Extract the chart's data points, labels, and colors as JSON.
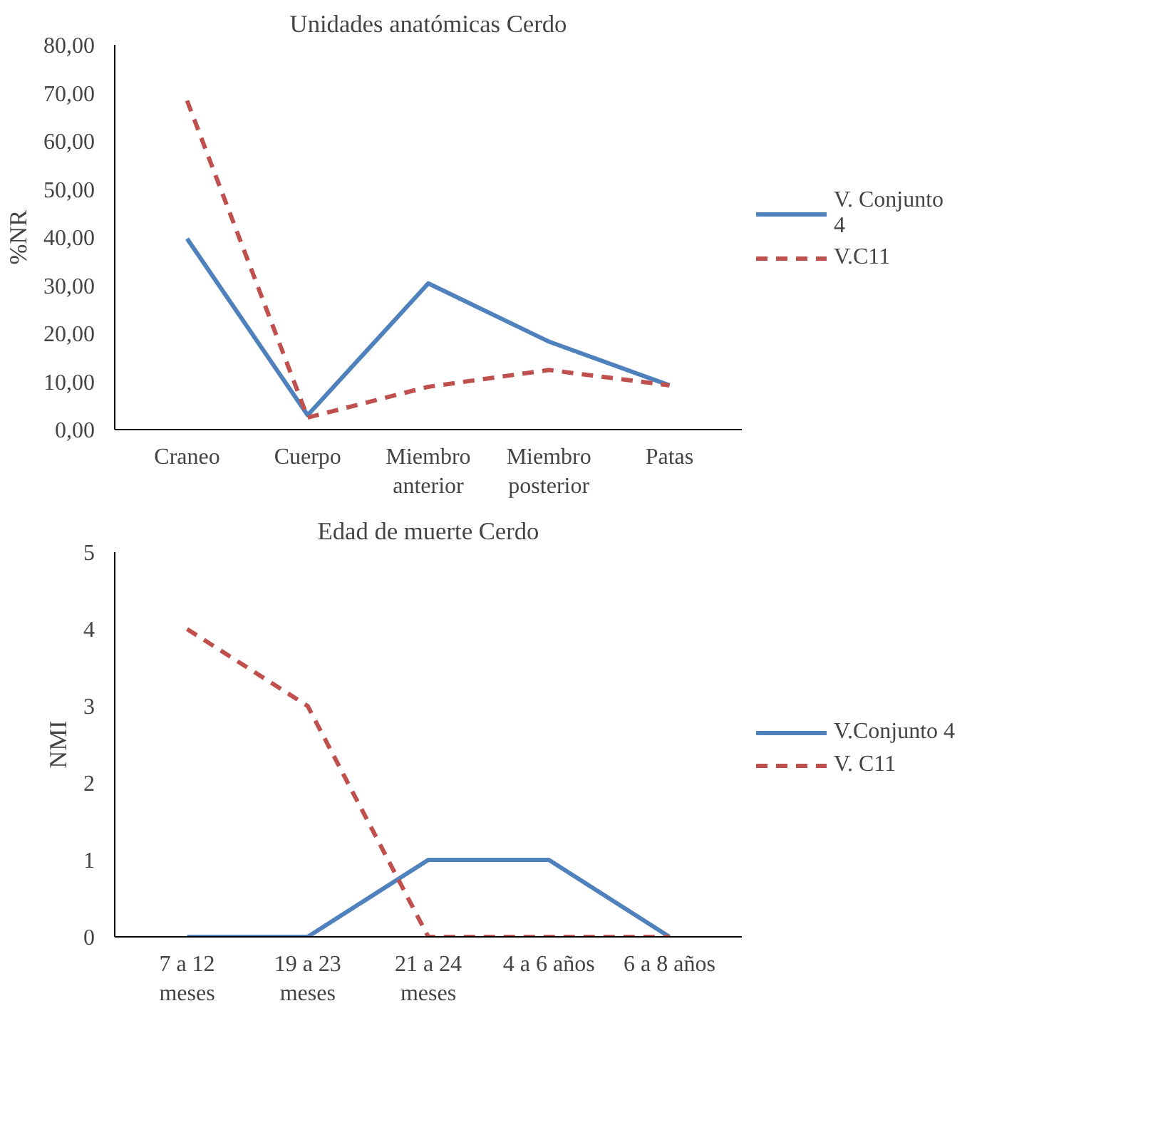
{
  "chart_data": [
    {
      "type": "line",
      "title": "Unidades anatómicas Cerdo",
      "ylabel": "%NR",
      "categories": [
        "Craneo",
        "Cuerpo",
        "Miembro anterior",
        "Miembro posterior",
        "Patas"
      ],
      "ylim": [
        0,
        80
      ],
      "yticks": [
        {
          "value": 0,
          "label": "0,00"
        },
        {
          "value": 10,
          "label": "10,00"
        },
        {
          "value": 20,
          "label": "20,00"
        },
        {
          "value": 30,
          "label": "30,00"
        },
        {
          "value": 40,
          "label": "40,00"
        },
        {
          "value": 50,
          "label": "50,00"
        },
        {
          "value": 60,
          "label": "60,00"
        },
        {
          "value": 70,
          "label": "70,00"
        },
        {
          "value": 80,
          "label": "80,00"
        }
      ],
      "legend": "right",
      "series": [
        {
          "name": "V. Conjunto 4",
          "color": "#4f81bd",
          "line_style": "solid",
          "values": [
            39.7,
            3.0,
            30.4,
            18.3,
            9.2
          ]
        },
        {
          "name": "V.C11",
          "color": "#c0504d",
          "line_style": "dashed",
          "values": [
            68.4,
            2.5,
            8.9,
            12.4,
            9.2
          ]
        }
      ]
    },
    {
      "type": "line",
      "title": "Edad de muerte Cerdo",
      "ylabel": "NMI",
      "categories": [
        "7 a 12 meses",
        "19 a 23 meses",
        "21 a 24 meses",
        "4 a 6 años",
        "6 a 8 años"
      ],
      "ylim": [
        0,
        5
      ],
      "yticks": [
        0,
        1,
        2,
        3,
        4,
        5
      ],
      "legend": "right",
      "series": [
        {
          "name": "V.Conjunto 4",
          "color": "#4f81bd",
          "line_style": "solid",
          "values": [
            0,
            0,
            1,
            1,
            0
          ]
        },
        {
          "name": "V. C11",
          "color": "#c0504d",
          "line_style": "dashed",
          "values": [
            4,
            3,
            0,
            0,
            0
          ]
        }
      ]
    }
  ]
}
